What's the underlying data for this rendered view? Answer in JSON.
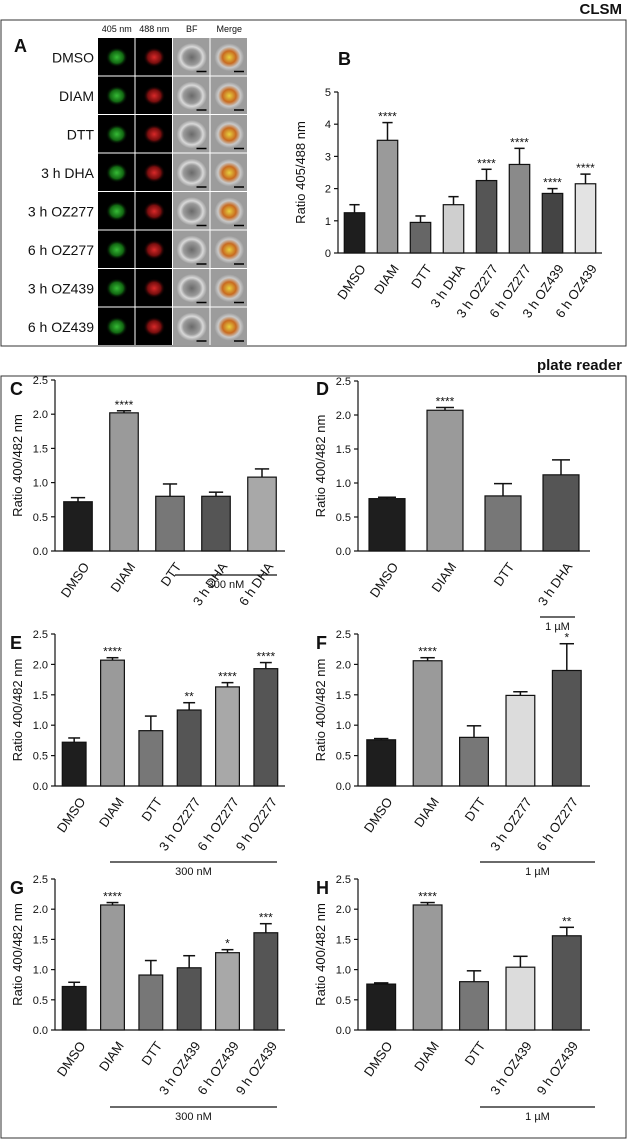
{
  "headers": {
    "clsm": "CLSM",
    "plate_reader": "plate reader"
  },
  "panel_a": {
    "letter": "A",
    "columns": [
      "405 nm",
      "488 nm",
      "BF",
      "Merge"
    ],
    "rows": [
      "DMSO",
      "DIAM",
      "DTT",
      "3 h DHA",
      "3 h OZ277",
      "6 h OZ277",
      "3 h OZ439",
      "6 h OZ439"
    ]
  },
  "chart_data": [
    {
      "type": "bar",
      "panel": "B",
      "ylabel": "Ratio 405/488 nm",
      "categories": [
        "DMSO",
        "DIAM",
        "DTT",
        "3 h DHA",
        "3 h OZ277",
        "6 h OZ277",
        "3 h OZ439",
        "6 h OZ439"
      ],
      "values": [
        1.25,
        3.5,
        0.95,
        1.5,
        2.25,
        2.75,
        1.85,
        2.15
      ],
      "errors": [
        0.25,
        0.55,
        0.2,
        0.25,
        0.35,
        0.5,
        0.15,
        0.3
      ],
      "significance": [
        null,
        "****",
        null,
        null,
        "****",
        "****",
        "****",
        "****"
      ],
      "colors": [
        "#1e1e1e",
        "#9a9a9a",
        "#666666",
        "#cfcfcf",
        "#555555",
        "#8a8a8a",
        "#444444",
        "#e3e3e3"
      ],
      "ylim": [
        0,
        5
      ],
      "yticks": [
        0,
        1,
        2,
        3,
        4,
        5
      ]
    },
    {
      "type": "bar",
      "panel": "C",
      "ylabel": "Ratio 400/482 nm",
      "categories": [
        "DMSO",
        "DIAM",
        "DTT",
        "3 h DHA",
        "6 h DHA"
      ],
      "values": [
        0.72,
        2.02,
        0.8,
        0.8,
        1.08
      ],
      "errors": [
        0.06,
        0.03,
        0.18,
        0.06,
        0.12
      ],
      "significance": [
        null,
        "****",
        null,
        null,
        null
      ],
      "colors": [
        "#1e1e1e",
        "#9a9a9a",
        "#777777",
        "#555555",
        "#a8a8a8"
      ],
      "bracket_label": "300 nM",
      "ylim": [
        0,
        2.5
      ],
      "yticks": [
        {
          "value": 0,
          "label": "0.0"
        },
        0.5,
        {
          "value": 1,
          "label": "1.0"
        },
        1.5,
        {
          "value": 2,
          "label": "2.0"
        },
        2.5
      ]
    },
    {
      "type": "bar",
      "panel": "D",
      "ylabel": "Ratio 400/482 nm",
      "categories": [
        "DMSO",
        "DIAM",
        "DTT",
        "3 h DHA"
      ],
      "values": [
        0.77,
        2.07,
        0.81,
        1.12
      ],
      "errors": [
        0.02,
        0.04,
        0.18,
        0.22
      ],
      "significance": [
        null,
        "****",
        null,
        null
      ],
      "colors": [
        "#1e1e1e",
        "#9a9a9a",
        "#777777",
        "#555555"
      ],
      "bracket_label": "1 µM",
      "ylim": [
        0,
        2.5
      ],
      "yticks": [
        {
          "value": 0,
          "label": "0.0"
        },
        0.5,
        {
          "value": 1,
          "label": "1.0"
        },
        1.5,
        {
          "value": 2,
          "label": "2.0"
        },
        2.5
      ]
    },
    {
      "type": "bar",
      "panel": "E",
      "ylabel": "Ratio 400/482 nm",
      "categories": [
        "DMSO",
        "DIAM",
        "DTT",
        "3 h OZ277",
        "6 h OZ277",
        "9 h OZ277"
      ],
      "values": [
        0.72,
        2.07,
        0.91,
        1.25,
        1.63,
        1.93
      ],
      "errors": [
        0.07,
        0.04,
        0.24,
        0.12,
        0.07,
        0.1
      ],
      "significance": [
        null,
        "****",
        null,
        "**",
        "****",
        "****"
      ],
      "colors": [
        "#1e1e1e",
        "#9a9a9a",
        "#777777",
        "#555555",
        "#a8a8a8",
        "#555555"
      ],
      "bracket_label": "300 nM",
      "ylim": [
        0,
        2.5
      ],
      "yticks": [
        {
          "value": 0,
          "label": "0.0"
        },
        0.5,
        {
          "value": 1,
          "label": "1.0"
        },
        1.5,
        {
          "value": 2,
          "label": "2.0"
        },
        2.5
      ]
    },
    {
      "type": "bar",
      "panel": "F",
      "ylabel": "Ratio 400/482 nm",
      "categories": [
        "DMSO",
        "DIAM",
        "DTT",
        "3 h OZ277",
        "6 h OZ277"
      ],
      "values": [
        0.76,
        2.06,
        0.8,
        1.49,
        1.9
      ],
      "errors": [
        0.02,
        0.05,
        0.19,
        0.06,
        0.44
      ],
      "significance": [
        null,
        "****",
        null,
        null,
        "*"
      ],
      "colors": [
        "#1e1e1e",
        "#9a9a9a",
        "#777777",
        "#dcdcdc",
        "#555555"
      ],
      "bracket_label": "1 µM",
      "ylim": [
        0,
        2.5
      ],
      "yticks": [
        {
          "value": 0,
          "label": "0.0"
        },
        0.5,
        {
          "value": 1,
          "label": "1.0"
        },
        1.5,
        {
          "value": 2,
          "label": "2.0"
        },
        2.5
      ]
    },
    {
      "type": "bar",
      "panel": "G",
      "ylabel": "Ratio 400/482 nm",
      "categories": [
        "DMSO",
        "DIAM",
        "DTT",
        "3 h OZ439",
        "6 h OZ439",
        "9 h OZ439"
      ],
      "values": [
        0.72,
        2.07,
        0.91,
        1.03,
        1.28,
        1.61
      ],
      "errors": [
        0.07,
        0.04,
        0.24,
        0.2,
        0.05,
        0.15
      ],
      "significance": [
        null,
        "****",
        null,
        null,
        "*",
        "***"
      ],
      "colors": [
        "#1e1e1e",
        "#9a9a9a",
        "#777777",
        "#555555",
        "#a8a8a8",
        "#555555"
      ],
      "bracket_label": "300 nM",
      "ylim": [
        0,
        2.5
      ],
      "yticks": [
        {
          "value": 0,
          "label": "0.0"
        },
        0.5,
        {
          "value": 1,
          "label": "1.0"
        },
        1.5,
        {
          "value": 2,
          "label": "2.0"
        },
        2.5
      ]
    },
    {
      "type": "bar",
      "panel": "H",
      "ylabel": "Ratio 400/482 nm",
      "categories": [
        "DMSO",
        "DIAM",
        "DTT",
        "3 h OZ439",
        "9 h OZ439"
      ],
      "values": [
        0.76,
        2.07,
        0.8,
        1.04,
        1.56
      ],
      "errors": [
        0.02,
        0.04,
        0.18,
        0.18,
        0.14
      ],
      "significance": [
        null,
        "****",
        null,
        null,
        "**"
      ],
      "colors": [
        "#1e1e1e",
        "#9a9a9a",
        "#777777",
        "#dcdcdc",
        "#555555"
      ],
      "bracket_label": "1 µM",
      "ylim": [
        0,
        2.5
      ],
      "yticks": [
        {
          "value": 0,
          "label": "0.0"
        },
        0.5,
        {
          "value": 1,
          "label": "1.0"
        },
        1.5,
        {
          "value": 2,
          "label": "2.0"
        },
        2.5
      ]
    }
  ]
}
